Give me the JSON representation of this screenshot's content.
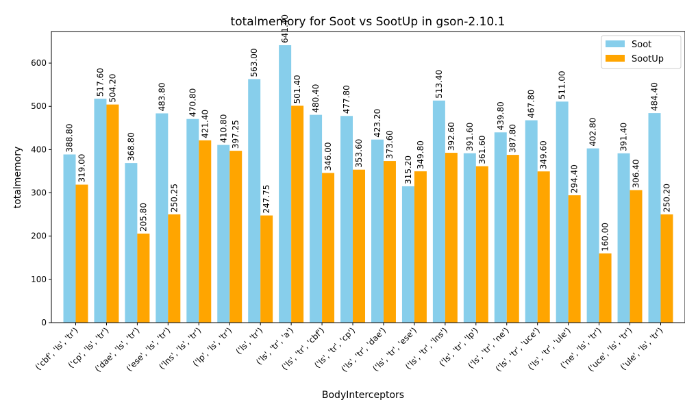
{
  "chart_data": {
    "type": "bar",
    "title": "totalmemory for Soot vs SootUp in gson-2.10.1",
    "xlabel": "BodyInterceptors",
    "ylabel": "totalmemory",
    "ylim": [
      0,
      673
    ],
    "yticks": [
      0,
      100,
      200,
      300,
      400,
      500,
      600
    ],
    "grid": false,
    "legend_position": "top-right",
    "categories": [
      "('cbf', 'ls', 'tr')",
      "('cp', 'ls', 'tr')",
      "('dae', 'ls', 'tr')",
      "('ese', 'ls', 'tr')",
      "('lns', 'ls', 'tr')",
      "('lp', 'ls', 'tr')",
      "('ls', 'tr')",
      "('ls', 'tr', 'a')",
      "('ls', 'tr', 'cbf')",
      "('ls', 'tr', 'cp')",
      "('ls', 'tr', 'dae')",
      "('ls', 'tr', 'ese')",
      "('ls', 'tr', 'lns')",
      "('ls', 'tr', 'lp')",
      "('ls', 'tr', 'ne')",
      "('ls', 'tr', 'uce')",
      "('ls', 'tr', 'ule')",
      "('ne', 'ls', 'tr')",
      "('uce', 'ls', 'tr')",
      "('ule', 'ls', 'tr')"
    ],
    "series": [
      {
        "name": "Soot",
        "color": "#87ceeb",
        "values": [
          388.8,
          517.6,
          368.8,
          483.8,
          470.8,
          410.8,
          563.0,
          641.4,
          480.4,
          477.8,
          423.2,
          315.2,
          513.4,
          391.6,
          439.8,
          467.8,
          511.0,
          402.8,
          391.4,
          484.4
        ],
        "labels": [
          "388.80",
          "517.60",
          "368.80",
          "483.80",
          "470.80",
          "410.80",
          "563.00",
          "641.40",
          "480.40",
          "477.80",
          "423.20",
          "315.20",
          "513.40",
          "391.60",
          "439.80",
          "467.80",
          "511.00",
          "402.80",
          "391.40",
          "484.40"
        ]
      },
      {
        "name": "SootUp",
        "color": "#ffa500",
        "values": [
          319.0,
          504.2,
          205.8,
          250.25,
          421.4,
          397.25,
          247.75,
          501.4,
          346.0,
          353.6,
          373.6,
          349.8,
          392.6,
          361.6,
          387.8,
          349.6,
          294.4,
          160.0,
          306.4,
          250.2
        ],
        "labels": [
          "319.00",
          "504.20",
          "205.80",
          "250.25",
          "421.40",
          "397.25",
          "247.75",
          "501.40",
          "346.00",
          "353.60",
          "373.60",
          "349.80",
          "392.60",
          "361.60",
          "387.80",
          "349.60",
          "294.40",
          "160.00",
          "306.40",
          "250.20"
        ]
      }
    ]
  }
}
